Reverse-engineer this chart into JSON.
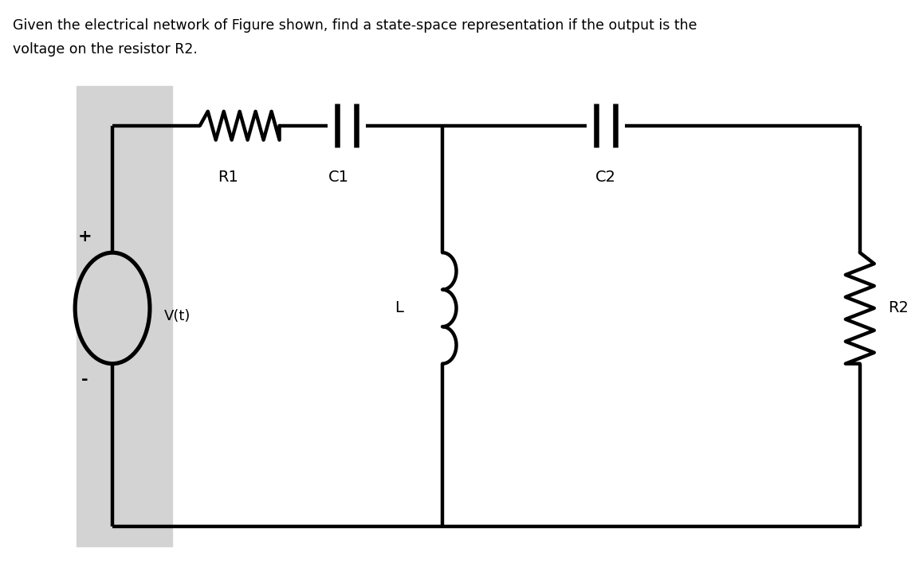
{
  "title_text": "Given the electrical network of Figure shown, find a state-space representation if the output is the\nvoltage on the resistor R2.",
  "title_fontsize": 12.5,
  "bg_color": "#ffffff",
  "gray_rect_color": "#d3d3d3",
  "circuit_lw": 3.2,
  "circuit_color": "#000000",
  "label_R1": "R1",
  "label_C1": "C1",
  "label_C2": "C2",
  "label_L": "L",
  "label_R2": "R2",
  "label_Vt": "V(t)",
  "label_plus": "+",
  "label_minus": "-",
  "label_fontsize": 14
}
